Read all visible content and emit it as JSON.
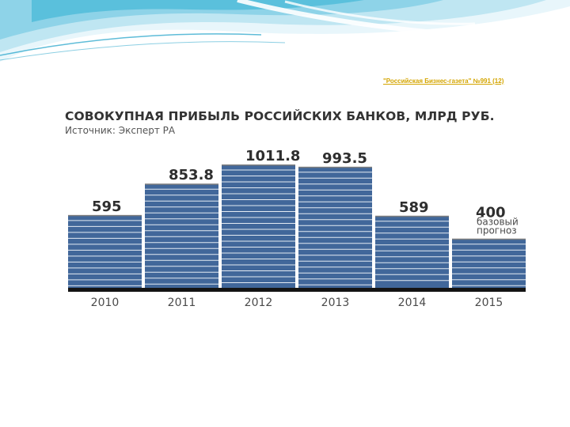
{
  "source_note": "\"Российская Бизнес-газета\" №991 (12)",
  "colors": {
    "bar": "#41679a",
    "bar_stripe": "#e4ebf3",
    "bar_top": "#7e7e7e",
    "baseline": "#141414",
    "label": "#2e2e2e",
    "year": "#4a4a4a",
    "source_note": "#d4a500"
  },
  "chart_data": {
    "type": "bar",
    "title": "СОВОКУПНАЯ ПРИБЫЛЬ РОССИЙСКИХ БАНКОВ, МЛРД РУБ.",
    "subtitle": "Источник: Эксперт РА",
    "categories": [
      "2010",
      "2011",
      "2012",
      "2013",
      "2014",
      "2015"
    ],
    "values": [
      595,
      853.8,
      1011.8,
      993.5,
      589,
      400
    ],
    "value_labels": [
      "595",
      "853.8",
      "1011.8",
      "993.5",
      "589",
      "400"
    ],
    "annotations": [
      {
        "category": "2015",
        "lines": [
          "базовый",
          "прогноз"
        ]
      }
    ],
    "xlabel": "",
    "ylabel": "",
    "ylim": [
      0,
      1011.8
    ],
    "grid": false,
    "legend": "none"
  }
}
